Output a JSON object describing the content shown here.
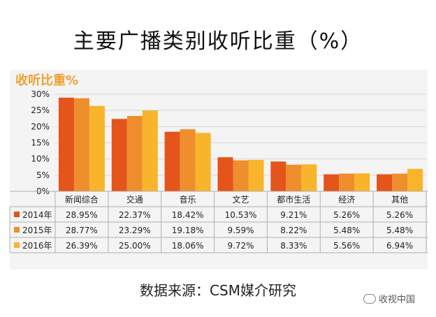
{
  "title": "主要广播类别收听比重（%）",
  "source": "数据来源：CSM媒介研究",
  "watermark": "收视中国",
  "chart_data": {
    "type": "bar",
    "ylabel": "收听比重%",
    "ylim": [
      0,
      30
    ],
    "yticks": [
      "0%",
      "5%",
      "10%",
      "15%",
      "20%",
      "25%",
      "30%"
    ],
    "categories": [
      "新闻综合",
      "交通",
      "音乐",
      "文艺",
      "都市生活",
      "经济",
      "其他"
    ],
    "series": [
      {
        "name": "2014年",
        "color": "#e4541b",
        "values": [
          28.95,
          22.37,
          18.42,
          10.53,
          9.21,
          5.26,
          5.26
        ],
        "labels": [
          "28.95%",
          "22.37%",
          "18.42%",
          "10.53%",
          "9.21%",
          "5.26%",
          "5.26%"
        ]
      },
      {
        "name": "2015年",
        "color": "#ee8e2c",
        "values": [
          28.77,
          23.29,
          19.18,
          9.59,
          8.22,
          5.48,
          5.48
        ],
        "labels": [
          "28.77%",
          "23.29%",
          "19.18%",
          "9.59%",
          "8.22%",
          "5.48%",
          "5.48%"
        ]
      },
      {
        "name": "2016年",
        "color": "#f8b52b",
        "values": [
          26.39,
          25.0,
          18.06,
          9.72,
          8.33,
          5.56,
          6.94
        ],
        "labels": [
          "26.39%",
          "25.00%",
          "18.06%",
          "9.72%",
          "8.33%",
          "5.56%",
          "6.94%"
        ]
      }
    ],
    "grid": true,
    "legend": "table-left"
  }
}
